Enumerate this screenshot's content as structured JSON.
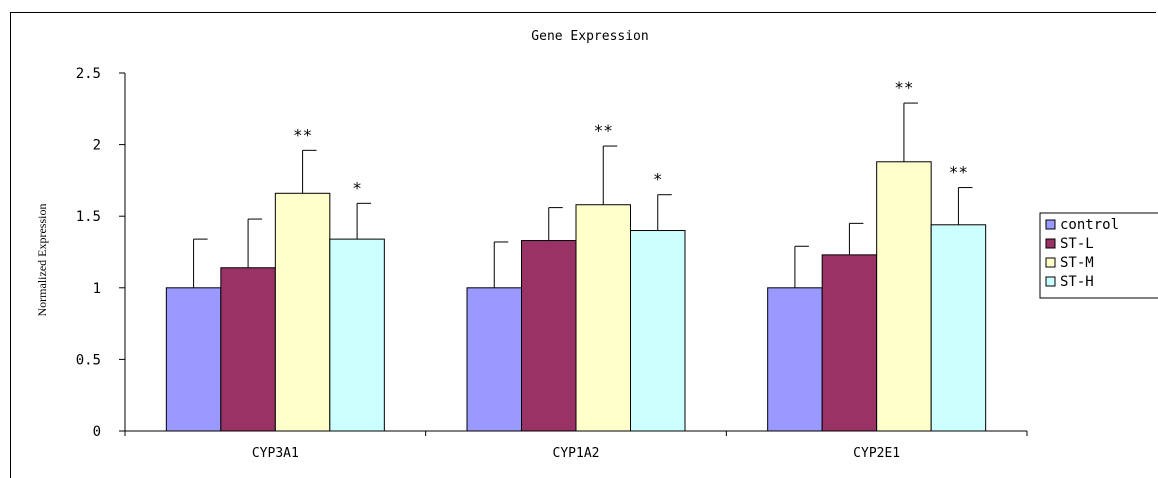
{
  "chart_data": {
    "type": "bar",
    "title": "Gene Expression",
    "ylabel": "Normalized Expression",
    "xlabel": "",
    "ylim": [
      0,
      2.5
    ],
    "yticks": [
      "0",
      "0.5",
      "1",
      "1.5",
      "2",
      "2.5"
    ],
    "ytick_values": [
      0,
      0.5,
      1,
      1.5,
      2,
      2.5
    ],
    "categories": [
      "CYP3A1",
      "CYP1A2",
      "CYP2E1"
    ],
    "series": [
      {
        "name": "control",
        "color": "#9999ff",
        "values": [
          1.0,
          1.0,
          1.0
        ],
        "errors": [
          0.34,
          0.32,
          0.29
        ],
        "marks": [
          "",
          "",
          ""
        ]
      },
      {
        "name": "ST-L",
        "color": "#993366",
        "values": [
          1.14,
          1.33,
          1.23
        ],
        "errors": [
          0.34,
          0.23,
          0.22
        ],
        "marks": [
          "",
          "",
          ""
        ]
      },
      {
        "name": "ST-M",
        "color": "#ffffcc",
        "values": [
          1.66,
          1.58,
          1.88
        ],
        "errors": [
          0.3,
          0.41,
          0.41
        ],
        "marks": [
          "**",
          "**",
          "**"
        ]
      },
      {
        "name": "ST-H",
        "color": "#ccffff",
        "values": [
          1.34,
          1.4,
          1.44
        ],
        "errors": [
          0.25,
          0.25,
          0.26
        ],
        "marks": [
          "*",
          "*",
          "**"
        ]
      }
    ],
    "grid": false,
    "legend_position": "right"
  }
}
